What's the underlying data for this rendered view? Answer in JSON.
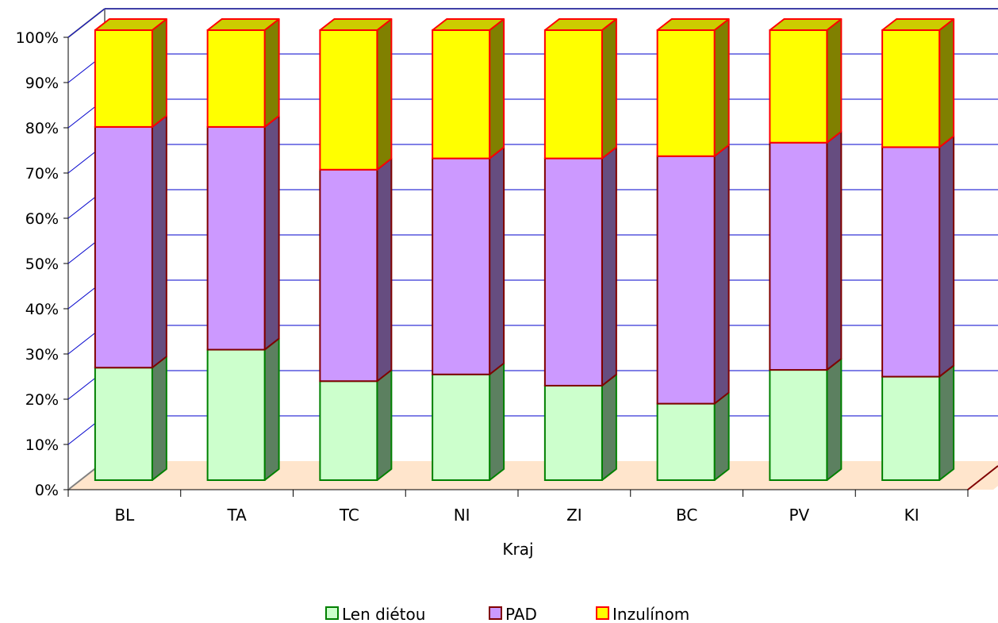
{
  "chart_data": {
    "type": "bar",
    "stacked": "percent",
    "three_d": true,
    "categories": [
      "BL",
      "TA",
      "TC",
      "NI",
      "ZI",
      "BC",
      "PV",
      "KI"
    ],
    "series": [
      {
        "name": "Len diétou",
        "values": [
          25,
          29,
          22,
          23.5,
          21,
          17,
          24.5,
          23
        ]
      },
      {
        "name": "PAD",
        "values": [
          53.5,
          49.5,
          47,
          48,
          50.5,
          55,
          50.5,
          51
        ]
      },
      {
        "name": "Inzulínom",
        "values": [
          21.5,
          21.5,
          31,
          28.5,
          28.5,
          28,
          25,
          26
        ]
      }
    ],
    "xlabel": "Kraj",
    "ylabel": "",
    "ylim": [
      0,
      100
    ],
    "yticks": [
      "0%",
      "10%",
      "20%",
      "30%",
      "40%",
      "50%",
      "60%",
      "70%",
      "80%",
      "90%",
      "100%"
    ],
    "grid": true,
    "legend_position": "bottom",
    "colors": {
      "series_fill": [
        "#CCFFCC",
        "#CC99FF",
        "#FFFF00"
      ],
      "series_side": [
        "#5C8060",
        "#664D80",
        "#808000"
      ],
      "series_top": [
        "#A3CCA3",
        "#A37ACC",
        "#CCCC00"
      ],
      "series_stroke": [
        "#008000",
        "#800000",
        "#FF0000"
      ],
      "gridline": "#0000CC",
      "floor": "#FFE5CC",
      "wall_edge": "#808080"
    }
  }
}
